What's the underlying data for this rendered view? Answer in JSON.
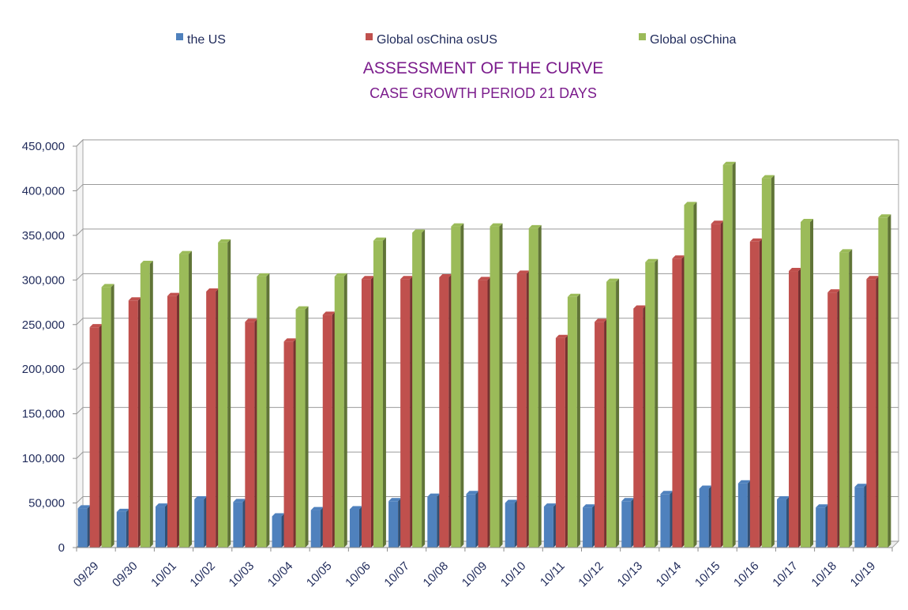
{
  "chart_data": {
    "type": "bar",
    "title": "ASSESSMENT OF THE CURVE",
    "subtitle": "CASE GROWTH PERIOD 21 DAYS",
    "categories": [
      "09/29",
      "09/30",
      "10/01",
      "10/02",
      "10/03",
      "10/04",
      "10/05",
      "10/06",
      "10/07",
      "10/08",
      "10/09",
      "10/10",
      "10/11",
      "10/12",
      "10/13",
      "10/14",
      "10/15",
      "10/16",
      "10/17",
      "10/18",
      "10/19"
    ],
    "series": [
      {
        "name": "the US",
        "color": "#4f81bd",
        "values": [
          44000,
          40000,
          46000,
          54000,
          51000,
          35000,
          42000,
          43000,
          52000,
          57000,
          60000,
          50000,
          46000,
          45000,
          52000,
          60000,
          66000,
          72000,
          54000,
          45000,
          68000
        ]
      },
      {
        "name": "Global osChina osUS",
        "color": "#c0504d",
        "values": [
          247000,
          277000,
          282000,
          287000,
          253000,
          231000,
          261000,
          301000,
          301000,
          303000,
          300000,
          307000,
          235000,
          253000,
          268000,
          324000,
          363000,
          343000,
          310000,
          286000,
          301000
        ]
      },
      {
        "name": "Global osChina",
        "color": "#9bbb59",
        "values": [
          292000,
          318000,
          329000,
          342000,
          304000,
          267000,
          304000,
          344000,
          353000,
          360000,
          360000,
          358000,
          281000,
          298000,
          320000,
          384000,
          429000,
          414000,
          365000,
          331000,
          370000
        ]
      }
    ],
    "yticks": [
      "0",
      "50,000",
      "100,000",
      "150,000",
      "200,000",
      "250,000",
      "300,000",
      "350,000",
      "400,000",
      "450,000"
    ],
    "ylim": [
      0,
      450000
    ],
    "grid": true,
    "legend_position": "top"
  }
}
